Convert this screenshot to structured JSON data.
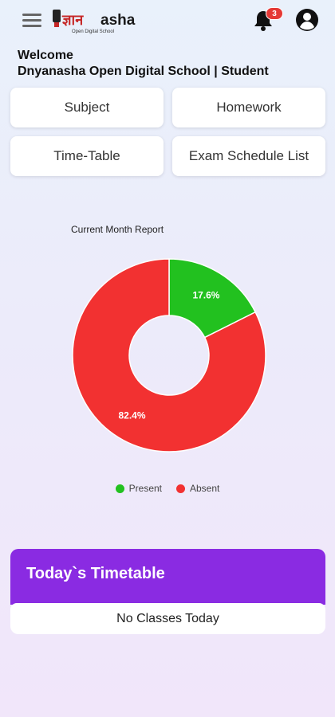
{
  "header": {
    "logo_text_devanagari": "ज्ञान",
    "logo_text_latin": "asha",
    "logo_tagline": "Open Digital School",
    "notification_count": "3"
  },
  "welcome": {
    "line1": "Welcome",
    "line2": "Dnyanasha Open Digital School | Student"
  },
  "tiles": {
    "subject": "Subject",
    "homework": "Homework",
    "timetable": "Time-Table",
    "exam_schedule": "Exam Schedule List"
  },
  "chart_data": {
    "type": "pie",
    "title": "Current Month Report",
    "donut": true,
    "categories": [
      "Present",
      "Absent"
    ],
    "values": [
      17.6,
      82.4
    ],
    "labels": [
      "17.6%",
      "82.4%"
    ],
    "colors": [
      "#22c11f",
      "#f23131"
    ],
    "legend_position": "bottom"
  },
  "timetable": {
    "title": "Today`s Timetable",
    "empty_message": "No Classes Today"
  },
  "colors": {
    "accent_purple": "#8a2be2",
    "badge_red": "#e53935"
  }
}
